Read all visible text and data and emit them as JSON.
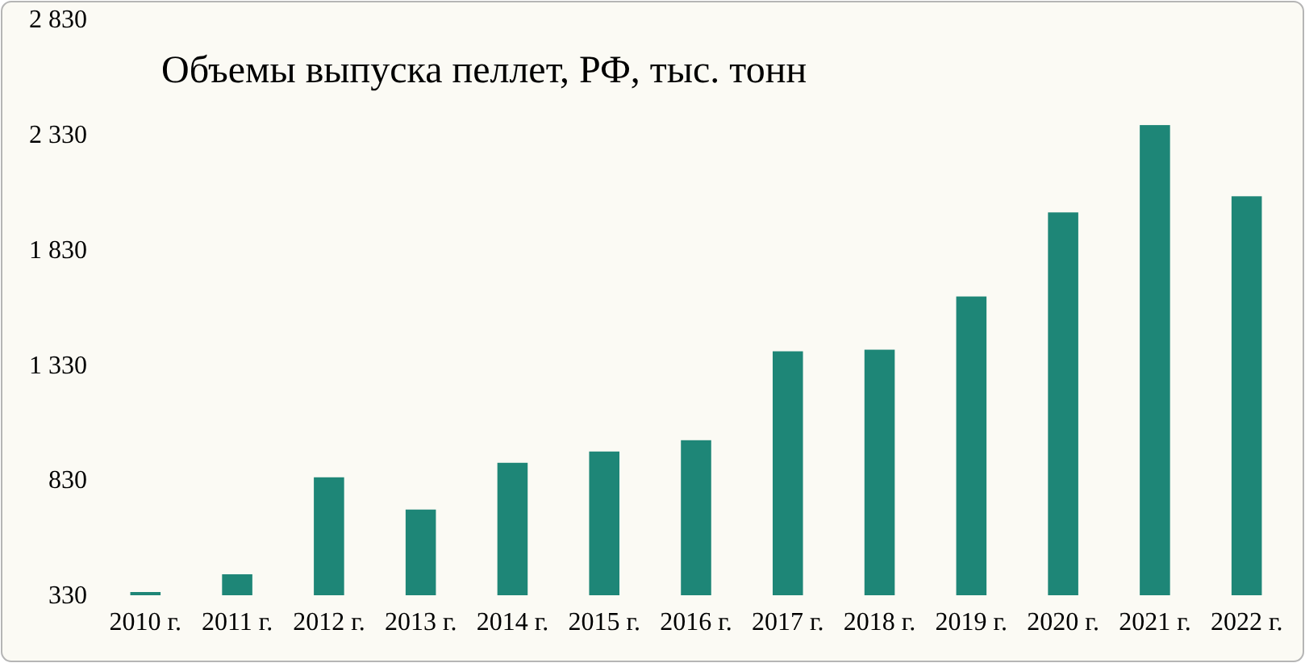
{
  "chart_data": {
    "type": "bar",
    "title": "Объемы выпуска пеллет, РФ, тыс. тонн",
    "categories": [
      "2010 г.",
      "2011 г.",
      "2012 г.",
      "2013 г.",
      "2014 г.",
      "2015 г.",
      "2016 г.",
      "2017 г.",
      "2018 г.",
      "2019 г.",
      "2020 г.",
      "2021 г.",
      "2022 г."
    ],
    "values": [
      344,
      421,
      842,
      702,
      905,
      954,
      1003,
      1389,
      1396,
      1627,
      1992,
      2371,
      2062
    ],
    "color": "#1e8677",
    "ylim": [
      330,
      2830
    ],
    "yticks": [
      {
        "value": 330,
        "label": "330"
      },
      {
        "value": 830,
        "label": "830"
      },
      {
        "value": 1330,
        "label": "1 330"
      },
      {
        "value": 1830,
        "label": "1 830"
      },
      {
        "value": 2330,
        "label": "2 330"
      },
      {
        "value": 2830,
        "label": "2 830"
      }
    ],
    "grid": false
  }
}
